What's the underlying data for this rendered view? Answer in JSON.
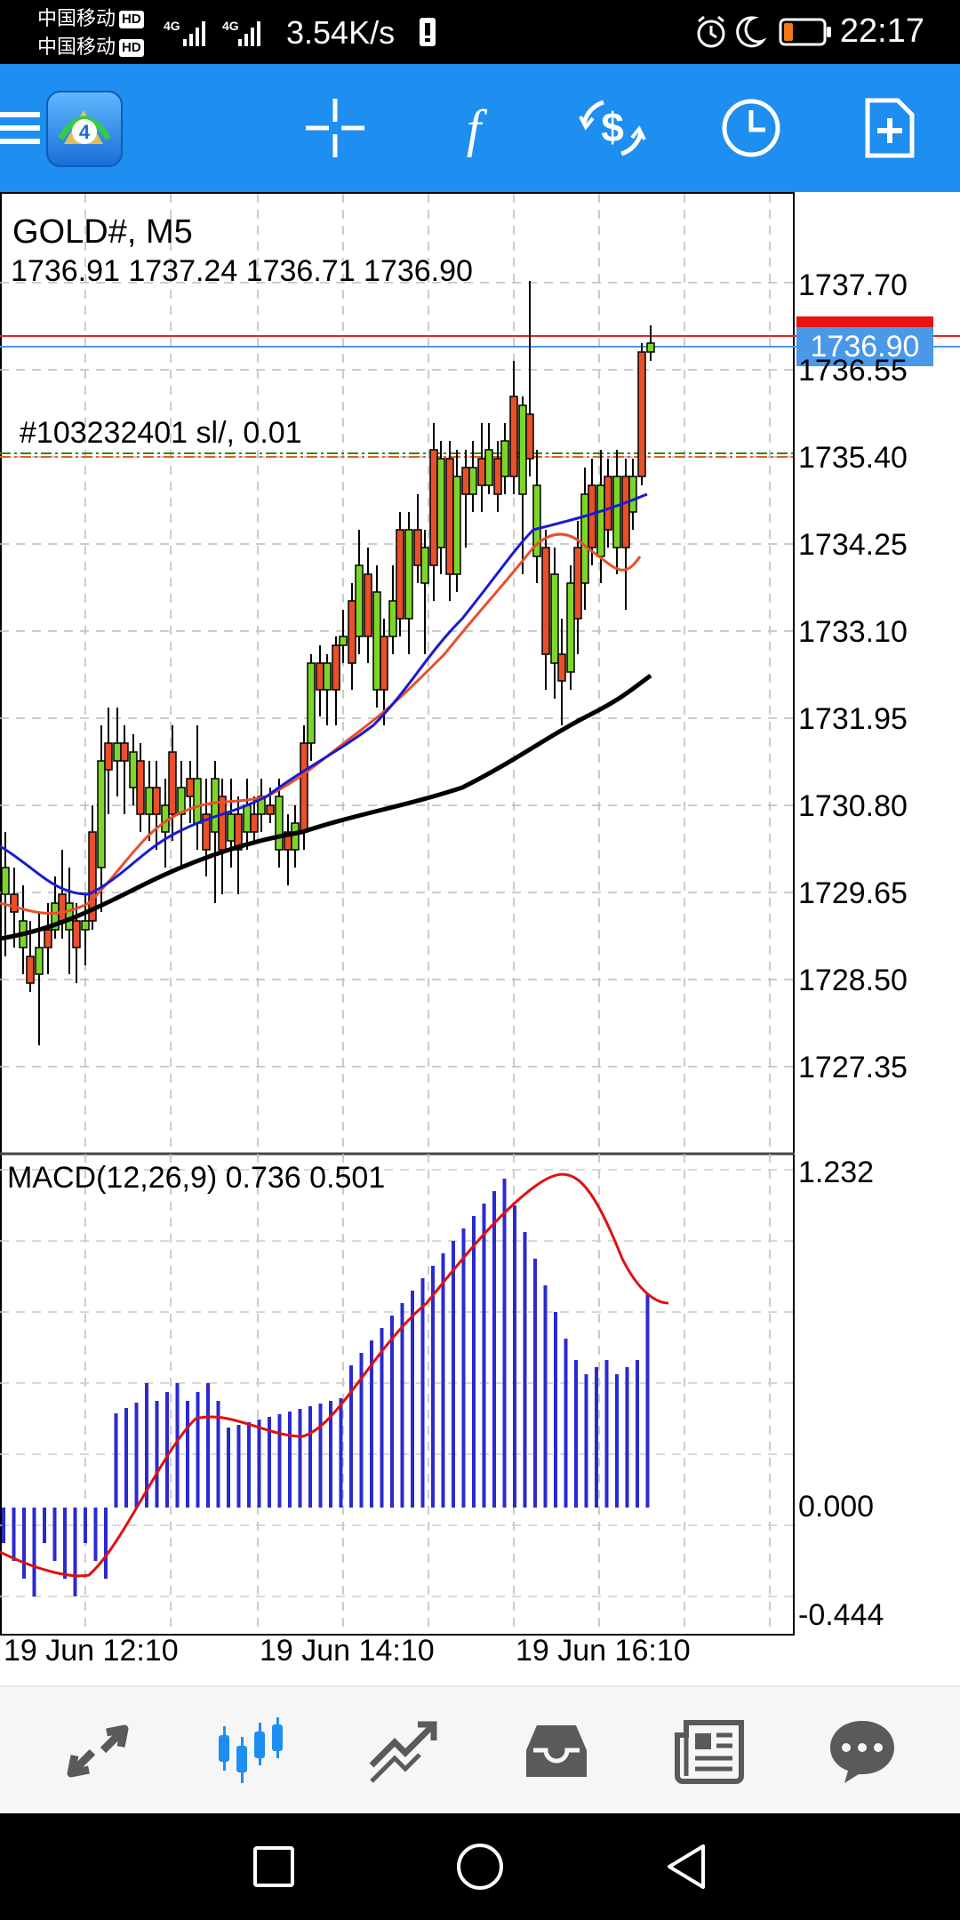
{
  "status_bar": {
    "carrier_1": "中国移动",
    "carrier_2": "中国移动",
    "hd_badge": "HD",
    "network_type": "4G",
    "speed": "3.54K/s",
    "time": "22:17",
    "icons": [
      "signal-icon",
      "alarm-icon",
      "moon-icon",
      "battery-icon"
    ]
  },
  "toolbar": {
    "icons": [
      "menu-icon",
      "metatrader-logo",
      "crosshair-icon",
      "indicators-icon",
      "trade-icon",
      "period-icon",
      "new-order-icon"
    ],
    "period_icon_color": "#ffffff",
    "background": "#1e8ef0"
  },
  "chart": {
    "symbol": "GOLD#, M5",
    "ohlc": "1736.91 1737.24 1736.71 1736.90",
    "order_label": "#103232401 sl/, 0.01",
    "bid_price": "1736.90",
    "price_axis": [
      "1737.70",
      "1736.55",
      "1735.40",
      "1734.25",
      "1733.10",
      "1731.95",
      "1730.80",
      "1729.65",
      "1728.50",
      "1727.35"
    ],
    "macd_label": "MACD(12,26,9) 0.736 0.501",
    "macd_axis": [
      "1.232",
      "0.000",
      "-0.444"
    ],
    "time_axis": [
      "19 Jun 12:10",
      "19 Jun 14:10",
      "19 Jun 16:10"
    ],
    "colors": {
      "bull": "#7cd62a",
      "bear": "#e8502a",
      "ma_fast": "#e8502a",
      "ma_mid": "#1a1ad0",
      "ma_slow": "#000000",
      "macd_hist": "#2a2ad0",
      "macd_signal": "#e01010"
    }
  },
  "bottom_nav": {
    "items": [
      "quotes-icon",
      "chart-icon",
      "trade-icon",
      "history-icon",
      "news-icon",
      "messages-icon"
    ],
    "active": "chart-icon",
    "active_color": "#1e8ef0"
  },
  "system_nav": {
    "items": [
      "recent-apps-icon",
      "home-icon",
      "back-icon"
    ]
  }
}
